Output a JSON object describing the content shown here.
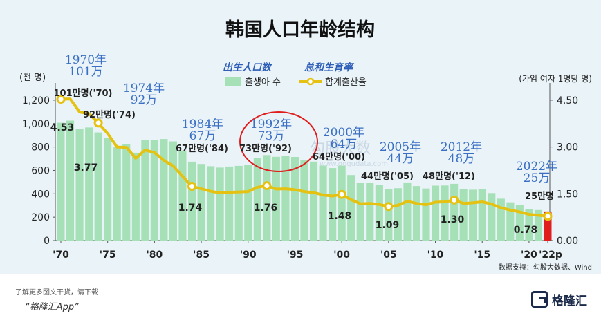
{
  "chart_data": {
    "type": "bar",
    "title": "韩国人口年龄结构",
    "legend": {
      "title_bars": "出生人口数",
      "title_line": "总和生育率",
      "bar_label": "출생아 수",
      "line_label": "합계출산율",
      "placement": "top-center"
    },
    "y_left_label": "(천 명)",
    "y_right_label": "(가임 여자 1명당 명)",
    "y_left_ticks": [
      "0",
      "200",
      "400",
      "600",
      "800",
      "1,000",
      "1,200"
    ],
    "y_right_ticks": [
      "0.00",
      "1.50",
      "3.00",
      "4.50"
    ],
    "ylim_left": [
      0,
      1300
    ],
    "ylim_right": [
      0,
      4.875
    ],
    "x_tick_labels": [
      "'70",
      "'75",
      "'80",
      "'85",
      "'90",
      "'95",
      "'00",
      "'05",
      "'10",
      "'15",
      "'20",
      "'22p"
    ],
    "x_tick_years": [
      1970,
      1975,
      1980,
      1985,
      1990,
      1995,
      2000,
      2005,
      2010,
      2015,
      2020,
      2022
    ],
    "years": [
      1970,
      1971,
      1972,
      1973,
      1974,
      1975,
      1976,
      1977,
      1978,
      1979,
      1980,
      1981,
      1982,
      1983,
      1984,
      1985,
      1986,
      1987,
      1988,
      1989,
      1990,
      1991,
      1992,
      1993,
      1994,
      1995,
      1996,
      1997,
      1998,
      1999,
      2000,
      2001,
      2002,
      2003,
      2004,
      2005,
      2006,
      2007,
      2008,
      2009,
      2010,
      2011,
      2012,
      2013,
      2014,
      2015,
      2016,
      2017,
      2018,
      2019,
      2020,
      2021,
      2022
    ],
    "births": [
      1007,
      1025,
      953,
      967,
      924,
      875,
      797,
      826,
      751,
      863,
      863,
      868,
      848,
      770,
      674,
      655,
      636,
      624,
      633,
      639,
      650,
      709,
      731,
      716,
      721,
      715,
      691,
      675,
      641,
      620,
      640,
      560,
      495,
      493,
      476,
      438,
      448,
      497,
      466,
      445,
      470,
      471,
      485,
      437,
      435,
      438,
      406,
      358,
      327,
      303,
      272,
      261,
      249
    ],
    "fertility": [
      4.53,
      4.54,
      4.12,
      4.07,
      3.77,
      3.43,
      3.0,
      2.99,
      2.64,
      2.9,
      2.82,
      2.57,
      2.39,
      2.06,
      1.74,
      1.66,
      1.58,
      1.53,
      1.55,
      1.56,
      1.57,
      1.71,
      1.76,
      1.65,
      1.66,
      1.63,
      1.57,
      1.54,
      1.46,
      1.43,
      1.48,
      1.31,
      1.18,
      1.19,
      1.16,
      1.09,
      1.13,
      1.26,
      1.19,
      1.15,
      1.23,
      1.24,
      1.3,
      1.19,
      1.21,
      1.24,
      1.17,
      1.05,
      0.98,
      0.92,
      0.84,
      0.81,
      0.78
    ],
    "highlight_year": 2022,
    "bar_color": "#a6e0b6",
    "highlight_color": "#e01e1e",
    "line_color": "#e5c211",
    "marked_points": [
      {
        "year": 1970,
        "label": "4.53"
      },
      {
        "year": 1974,
        "label": "3.77"
      },
      {
        "year": 1984,
        "label": "1.74"
      },
      {
        "year": 1992,
        "label": "1.76"
      },
      {
        "year": 2000,
        "label": "1.48"
      },
      {
        "year": 2005,
        "label": "1.09"
      },
      {
        "year": 2012,
        "label": "1.30"
      },
      {
        "year": 2022,
        "label": "0.78"
      }
    ],
    "birth_annotations": [
      {
        "year": 1970,
        "label": "101만명('70)"
      },
      {
        "year": 1974,
        "label": "92만명('74)"
      },
      {
        "year": 1984,
        "label": "67만명('84)"
      },
      {
        "year": 1992,
        "label": "73만명('92)"
      },
      {
        "year": 2000,
        "label": "64만명('00)"
      },
      {
        "year": 2005,
        "label": "44만명('05)"
      },
      {
        "year": 2012,
        "label": "48만명('12)"
      },
      {
        "year": 2022,
        "label": "25만명"
      }
    ],
    "cn_annotations": [
      {
        "year": 1970,
        "line1": "1970年",
        "line2": "101万"
      },
      {
        "year": 1974,
        "line1": "1974年",
        "line2": "92万"
      },
      {
        "year": 1984,
        "line1": "1984年",
        "line2": "67万"
      },
      {
        "year": 1992,
        "line1": "1992年",
        "line2": "73万"
      },
      {
        "year": 2000,
        "line1": "2000年",
        "line2": "64万"
      },
      {
        "year": 2005,
        "line1": "2005年",
        "line2": "44万"
      },
      {
        "year": 2012,
        "line1": "2012年",
        "line2": "48万"
      },
      {
        "year": 2022,
        "line1": "2022年",
        "line2": "25万"
      }
    ],
    "source": "数据支持：勾股大数据、Wind",
    "watermark": "勾股大数",
    "watermark_url": "www.gogudata.com"
  },
  "footer": {
    "note": "了解更多图文干货，请下载",
    "app": "“格隆汇App”",
    "logo": "格隆汇"
  }
}
